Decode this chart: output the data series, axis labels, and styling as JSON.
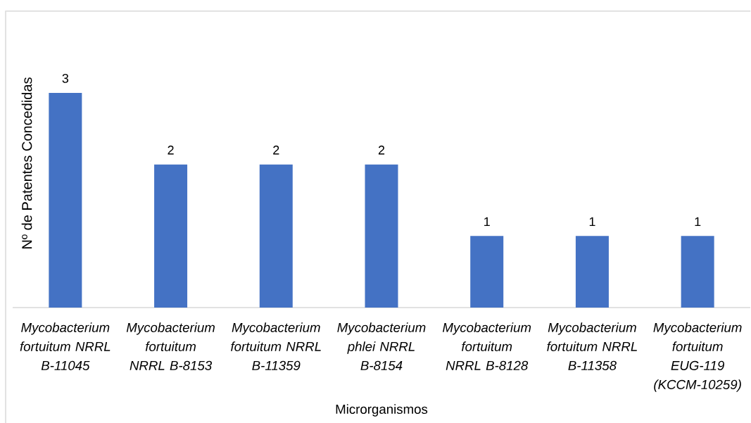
{
  "chart_data": {
    "type": "bar",
    "xlabel": "Microrganismos",
    "ylabel": "Nº de Patentes Concedidas",
    "categories": [
      "Mycobacterium fortuitum NRRL B-11045",
      "Mycobacterium fortuitum NRRL B-8153",
      "Mycobacterium fortuitum NRRL B-11359",
      "Mycobacterium phlei NRRL B-8154",
      "Mycobacterium fortuitum NRRL B-8128",
      "Mycobacterium fortuitum NRRL B-11358",
      "Mycobacterium fortuitum EUG-119 (KCCM-10259)"
    ],
    "values": [
      3,
      2,
      2,
      2,
      1,
      1,
      1
    ],
    "color": "#4472c4",
    "data_labels": true
  }
}
